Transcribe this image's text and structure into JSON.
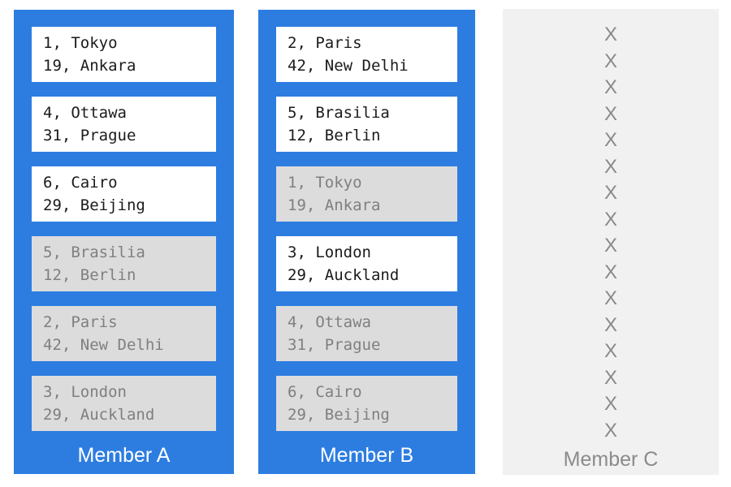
{
  "colors": {
    "member_blue": "#2D7DE1",
    "committed_card_bg": "#FFFFFF",
    "committed_card_text": "#1B1B1B",
    "uncommitted_card_bg": "#DCDCDC",
    "uncommitted_card_text": "#7F7F7F",
    "member_label_text": "#FFFFFF",
    "offline_column_bg": "#F1F1F1",
    "offline_mark_color": "#898989",
    "offline_label_text": "#8B8B8B"
  },
  "members": [
    {
      "id": "a",
      "label": "Member A",
      "status": "online",
      "entries": [
        {
          "line1": "1, Tokyo",
          "line2": "19, Ankara",
          "committed": true
        },
        {
          "line1": "4, Ottawa",
          "line2": "31, Prague",
          "committed": true
        },
        {
          "line1": "6, Cairo",
          "line2": "29, Beijing",
          "committed": true
        },
        {
          "line1": "5, Brasilia",
          "line2": "12, Berlin",
          "committed": false
        },
        {
          "line1": "2, Paris",
          "line2": "42, New Delhi",
          "committed": false
        },
        {
          "line1": "3, London",
          "line2": "29, Auckland",
          "committed": false
        }
      ]
    },
    {
      "id": "b",
      "label": "Member B",
      "status": "online",
      "entries": [
        {
          "line1": "2, Paris",
          "line2": "42, New Delhi",
          "committed": true
        },
        {
          "line1": "5, Brasilia",
          "line2": "12, Berlin",
          "committed": true
        },
        {
          "line1": "1, Tokyo",
          "line2": "19, Ankara",
          "committed": false
        },
        {
          "line1": "3, London",
          "line2": "29, Auckland",
          "committed": true
        },
        {
          "line1": "4, Ottawa",
          "line2": "31, Prague",
          "committed": false
        },
        {
          "line1": "6, Cairo",
          "line2": "29, Beijing",
          "committed": false
        }
      ]
    },
    {
      "id": "c",
      "label": "Member C",
      "status": "offline",
      "offline_mark": "X",
      "offline_mark_count": 16
    }
  ]
}
